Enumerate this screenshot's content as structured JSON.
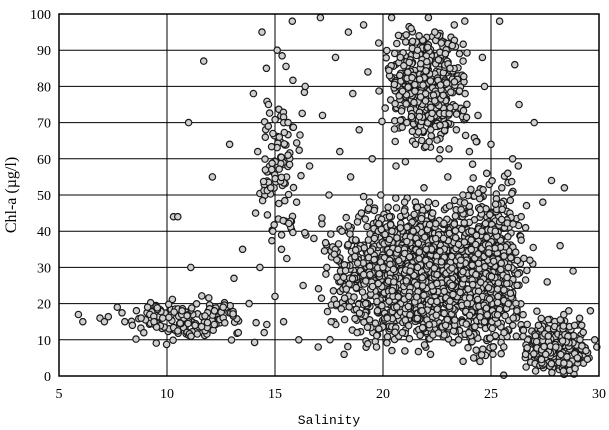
{
  "chart_data": {
    "type": "scatter",
    "title": "",
    "xlabel": "Salinity",
    "ylabel": "Chl-a (µg/l)",
    "xlim": [
      5,
      30
    ],
    "ylim": [
      0,
      100
    ],
    "xticks": [
      5,
      10,
      15,
      20,
      25,
      30
    ],
    "yticks": [
      0,
      10,
      20,
      30,
      40,
      50,
      60,
      70,
      80,
      90,
      100
    ],
    "grid": {
      "horizontal": true,
      "vertical": true
    },
    "legend": "none",
    "marker": {
      "shape": "circle",
      "fill": "#cfcfcf",
      "edge": "#1a1a1a"
    },
    "x_tick_labels": [
      "5",
      "10",
      "15",
      "20",
      "25",
      "30"
    ],
    "y_tick_labels": [
      "0",
      "10",
      "20",
      "30",
      "40",
      "50",
      "60",
      "70",
      "80",
      "90",
      "100"
    ],
    "series": [
      {
        "points": [
          [
            5.9,
            17
          ],
          [
            6.1,
            15
          ],
          [
            6.9,
            16
          ],
          [
            7.1,
            15
          ],
          [
            7.7,
            19
          ],
          [
            8.4,
            14
          ],
          [
            8.8,
            16
          ],
          [
            9.1,
            19
          ],
          [
            9.4,
            15
          ],
          [
            9.8,
            16
          ],
          [
            10.3,
            44
          ],
          [
            10.5,
            44
          ],
          [
            10.7,
            18
          ],
          [
            11.0,
            70
          ],
          [
            11.1,
            30
          ],
          [
            11.3,
            14
          ],
          [
            11.7,
            87
          ],
          [
            12.1,
            55
          ],
          [
            12.2,
            18
          ],
          [
            12.6,
            19
          ],
          [
            12.9,
            64
          ],
          [
            13.1,
            27
          ],
          [
            13.3,
            12
          ],
          [
            13.5,
            35
          ],
          [
            13.8,
            20
          ],
          [
            14.0,
            78
          ],
          [
            14.1,
            45
          ],
          [
            14.2,
            62
          ],
          [
            14.3,
            30
          ],
          [
            14.4,
            95
          ],
          [
            14.5,
            12
          ],
          [
            14.6,
            85
          ],
          [
            14.7,
            75
          ],
          [
            14.8,
            52
          ],
          [
            14.9,
            40
          ],
          [
            15.0,
            22
          ],
          [
            15.1,
            90
          ],
          [
            15.2,
            66
          ],
          [
            15.3,
            35
          ],
          [
            15.4,
            15
          ],
          [
            15.6,
            70
          ],
          [
            15.8,
            98
          ],
          [
            16.0,
            48
          ],
          [
            16.1,
            10
          ],
          [
            16.3,
            25
          ],
          [
            16.4,
            80
          ],
          [
            16.6,
            58
          ],
          [
            16.8,
            38
          ],
          [
            17.0,
            8
          ],
          [
            17.1,
            99
          ],
          [
            17.2,
            72
          ],
          [
            17.4,
            30
          ],
          [
            17.5,
            50
          ],
          [
            17.6,
            15
          ],
          [
            17.8,
            88
          ],
          [
            18.0,
            62
          ],
          [
            18.1,
            40
          ],
          [
            18.2,
            6
          ],
          [
            18.3,
            24
          ],
          [
            18.4,
            95
          ],
          [
            18.5,
            55
          ],
          [
            18.6,
            78
          ],
          [
            18.7,
            33
          ],
          [
            18.8,
            12
          ],
          [
            18.9,
            68
          ],
          [
            19.0,
            45
          ],
          [
            19.1,
            97
          ],
          [
            19.2,
            20
          ],
          [
            19.3,
            84
          ],
          [
            19.4,
            28
          ],
          [
            19.5,
            60
          ],
          [
            19.6,
            38
          ],
          [
            19.7,
            8
          ],
          [
            19.8,
            92
          ],
          [
            19.9,
            50
          ],
          [
            20.0,
            30
          ],
          [
            20.1,
            74
          ],
          [
            20.2,
            16
          ],
          [
            20.3,
            44
          ],
          [
            20.4,
            99
          ],
          [
            20.5,
            26
          ],
          [
            20.6,
            58
          ],
          [
            20.7,
            35
          ],
          [
            20.8,
            88
          ],
          [
            20.9,
            12
          ],
          [
            21.0,
            48
          ],
          [
            21.1,
            70
          ],
          [
            21.2,
            22
          ],
          [
            21.3,
            96
          ],
          [
            21.4,
            40
          ],
          [
            21.5,
            64
          ],
          [
            21.6,
            30
          ],
          [
            21.7,
            82
          ],
          [
            21.8,
            18
          ],
          [
            21.9,
            52
          ],
          [
            22.0,
            35
          ],
          [
            22.1,
            99
          ],
          [
            22.2,
            6
          ],
          [
            22.3,
            45
          ],
          [
            22.4,
            76
          ],
          [
            22.5,
            28
          ],
          [
            22.6,
            60
          ],
          [
            22.7,
            92
          ],
          [
            22.8,
            38
          ],
          [
            22.9,
            14
          ],
          [
            23.0,
            55
          ],
          [
            23.1,
            85
          ],
          [
            23.2,
            25
          ],
          [
            23.3,
            42
          ],
          [
            23.4,
            68
          ],
          [
            23.5,
            10
          ],
          [
            23.6,
            32
          ],
          [
            23.7,
            50
          ],
          [
            23.8,
            78
          ],
          [
            23.9,
            20
          ],
          [
            24.0,
            62
          ],
          [
            24.1,
            40
          ],
          [
            24.2,
            5
          ],
          [
            24.3,
            28
          ],
          [
            24.4,
            72
          ],
          [
            24.5,
            46
          ],
          [
            24.6,
            88
          ],
          [
            24.7,
            15
          ],
          [
            24.8,
            56
          ],
          [
            24.9,
            34
          ],
          [
            25.0,
            64
          ],
          [
            25.1,
            8
          ],
          [
            25.2,
            40
          ],
          [
            25.3,
            24
          ],
          [
            25.4,
            98
          ],
          [
            25.5,
            52
          ],
          [
            25.6,
            12
          ],
          [
            25.8,
            30
          ],
          [
            26.0,
            60
          ],
          [
            26.1,
            86
          ],
          [
            26.2,
            18
          ],
          [
            26.4,
            44
          ],
          [
            26.6,
            6
          ],
          [
            26.8,
            32
          ],
          [
            27.0,
            70
          ],
          [
            27.2,
            14
          ],
          [
            27.4,
            48
          ],
          [
            27.6,
            26
          ],
          [
            27.8,
            54
          ],
          [
            28.0,
            8
          ],
          [
            28.2,
            36
          ],
          [
            28.4,
            52
          ],
          [
            28.6,
            18
          ],
          [
            28.8,
            29
          ],
          [
            29.0,
            5
          ],
          [
            29.2,
            14
          ],
          [
            29.4,
            7
          ],
          [
            29.6,
            18
          ],
          [
            29.8,
            10
          ],
          [
            29.9,
            8
          ],
          [
            26.3,
            75
          ],
          [
            24.7,
            80
          ],
          [
            22.4,
            95
          ],
          [
            21.6,
            90
          ],
          [
            23.3,
            97
          ]
        ]
      }
    ],
    "dense_regions": [
      {
        "x_range": [
          15,
          26.5
        ],
        "y_range": [
          5,
          55
        ],
        "points": 1800,
        "x_center": 22,
        "y_center": 28
      },
      {
        "x_range": [
          19.5,
          24.5
        ],
        "y_range": [
          55,
          100
        ],
        "points": 500,
        "x_center": 22,
        "y_center": 80
      },
      {
        "x_range": [
          22.5,
          27
        ],
        "y_range": [
          0,
          72
        ],
        "points": 400,
        "x_center": 25,
        "y_center": 30
      },
      {
        "x_range": [
          26,
          30
        ],
        "y_range": [
          0,
          25
        ],
        "points": 250,
        "x_center": 28,
        "y_center": 8
      },
      {
        "x_range": [
          6,
          15
        ],
        "y_range": [
          8,
          24
        ],
        "points": 150,
        "x_center": 11,
        "y_center": 15
      },
      {
        "x_range": [
          14,
          17
        ],
        "y_range": [
          30,
          100
        ],
        "points": 100,
        "x_center": 15.2,
        "y_center": 60
      }
    ]
  }
}
